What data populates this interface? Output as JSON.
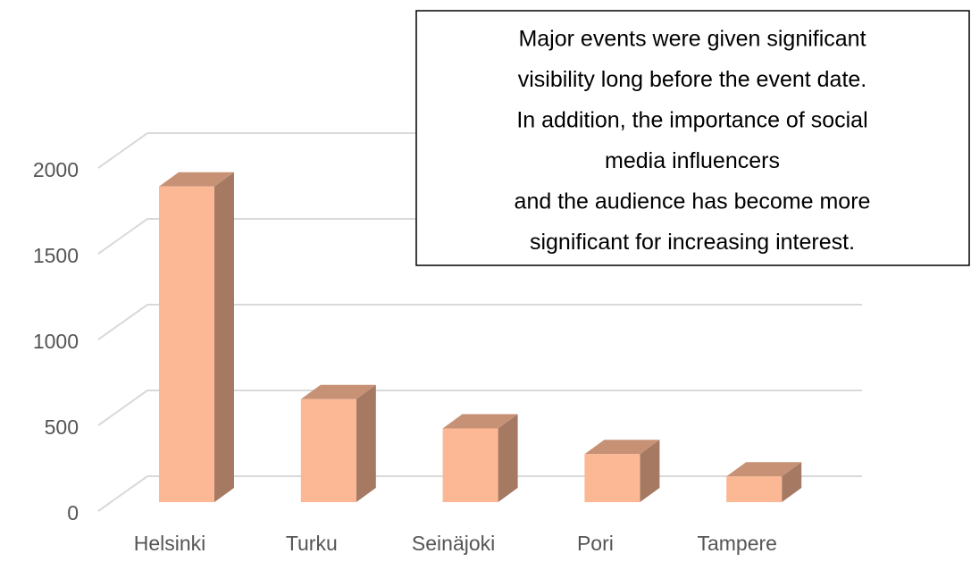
{
  "chart_data": {
    "type": "bar3d",
    "categories": [
      "Helsinki",
      "Turku",
      "Seinäjoki",
      "Pori",
      "Tampere"
    ],
    "values": [
      1840,
      600,
      430,
      280,
      150
    ],
    "color": "#fcb895",
    "ylim": [
      0,
      2000
    ],
    "yticks": [
      0,
      500,
      1000,
      1500,
      2000
    ],
    "grid": true,
    "annotation": [
      "Major events were given significant",
      "visibility long before the event date.",
      "In addition, the importance of social",
      "media influencers",
      "and the audience has become more",
      "significant for increasing interest."
    ]
  }
}
